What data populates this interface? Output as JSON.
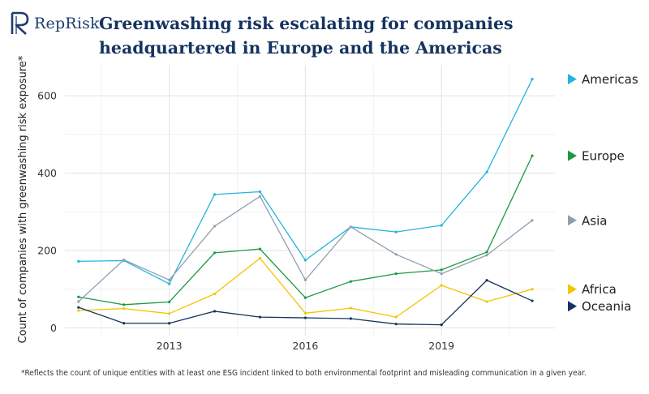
{
  "brand": {
    "name": "RepRisk",
    "color": "#1d3d6e"
  },
  "header": {
    "title": "Greenwashing risk escalating for companies headquartered in Europe and the Americas"
  },
  "footnote": "*Reflects the count of unique entities with at least one ESG incident linked to both environmental footprint and misleading communication in a given year.",
  "chart_data": {
    "type": "line",
    "title": "Greenwashing risk escalating for companies headquartered in Europe and the Americas",
    "xlabel": "",
    "ylabel": "Count of companies with greenwashing risk exposure*",
    "x": [
      2011,
      2012,
      2013,
      2014,
      2015,
      2016,
      2017,
      2018,
      2019,
      2020,
      2021
    ],
    "xlim": [
      2010.7,
      2021.5
    ],
    "ylim": [
      -20,
      680
    ],
    "xticks": [
      2013,
      2016,
      2019
    ],
    "xtick_labels": [
      "2013",
      "2016",
      "2019"
    ],
    "yticks": [
      0,
      200,
      400,
      600
    ],
    "ytick_labels": [
      "0",
      "200",
      "400",
      "600"
    ],
    "grid": true,
    "legend_placement": "right, at line ends",
    "series": [
      {
        "name": "Americas",
        "color": "#23b4e0",
        "values": [
          172,
          174,
          114,
          345,
          352,
          175,
          261,
          248,
          265,
          403,
          643
        ]
      },
      {
        "name": "Europe",
        "color": "#1a9a41",
        "values": [
          80,
          60,
          67,
          194,
          204,
          78,
          120,
          140,
          150,
          196,
          445
        ]
      },
      {
        "name": "Asia",
        "color": "#8fa0ad",
        "values": [
          68,
          176,
          124,
          263,
          340,
          124,
          261,
          190,
          140,
          188,
          278
        ]
      },
      {
        "name": "Africa",
        "color": "#f5c400",
        "values": [
          45,
          50,
          37,
          88,
          180,
          38,
          51,
          28,
          110,
          68,
          100
        ]
      },
      {
        "name": "Oceania",
        "color": "#16335f",
        "values": [
          53,
          12,
          12,
          43,
          28,
          26,
          24,
          10,
          8,
          123,
          70
        ]
      }
    ]
  }
}
